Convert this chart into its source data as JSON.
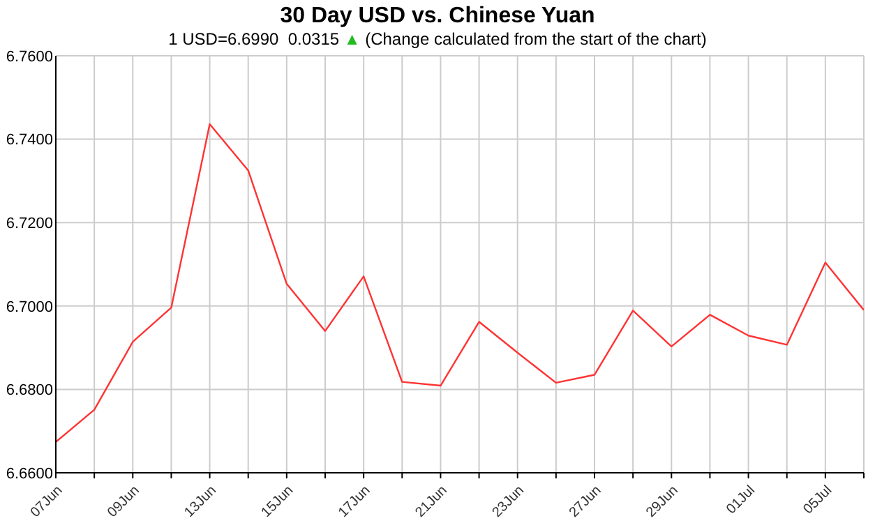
{
  "chart_data": {
    "type": "line",
    "title": "30 Day USD vs. Chinese Yuan",
    "subtitle": "1 USD=6.6990  0.0315 ▲ (Change calculated from the start of the chart)",
    "categories": [
      "07Jun",
      null,
      "09Jun",
      null,
      "13Jun",
      null,
      "15Jun",
      null,
      "17Jun",
      null,
      "21Jun",
      null,
      "23Jun",
      null,
      "27Jun",
      null,
      "29Jun",
      null,
      "01Jul",
      null,
      "05Jul",
      null
    ],
    "series": [
      {
        "color": "#ff3333",
        "values": [
          6.6674,
          6.6751,
          6.6914,
          6.6996,
          6.7436,
          6.7325,
          6.7053,
          6.694,
          6.7071,
          6.6818,
          6.6809,
          6.6962,
          6.6888,
          6.6816,
          6.6835,
          6.6989,
          6.6903,
          6.6979,
          6.6929,
          6.6907,
          6.7104,
          6.699
        ]
      }
    ],
    "ylim": [
      6.66,
      6.76
    ],
    "yticks": [
      {
        "value": 6.66,
        "label": "6.6600"
      },
      {
        "value": 6.68,
        "label": "6.6800"
      },
      {
        "value": 6.7,
        "label": "6.7000"
      },
      {
        "value": 6.72,
        "label": "6.7200"
      },
      {
        "value": 6.74,
        "label": "6.7400"
      },
      {
        "value": 6.76,
        "label": "6.7600"
      }
    ],
    "grid": true,
    "legend": false,
    "marker": "none",
    "line_style": "solid"
  }
}
